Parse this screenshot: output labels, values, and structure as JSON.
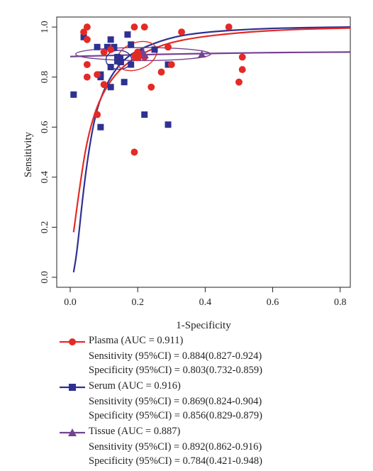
{
  "chart_data": {
    "type": "scatter",
    "title": "",
    "xlabel": "1-Specificity",
    "ylabel": "Sensitivity",
    "xlim": [
      -0.04,
      0.83
    ],
    "ylim": [
      -0.04,
      1.04
    ],
    "xticks": [
      "0.0",
      "0.2",
      "0.4",
      "0.6",
      "0.8"
    ],
    "yticks": [
      "0.0",
      "0.2",
      "0.4",
      "0.6",
      "0.8",
      "1.0"
    ],
    "grid": false,
    "legend_position": "below",
    "series": [
      {
        "name": "Plasma (AUC = 0.911)",
        "color": "#e42a26",
        "marker": "circle",
        "sensitivity_ci": "Sensitivity (95%CI) = 0.884(0.827-0.924)",
        "specificity_ci": "Specificity (95%CI) = 0.803(0.732-0.859)",
        "summary_point": [
          0.197,
          0.884
        ],
        "confidence_ellipse": {
          "rx": 0.062,
          "ry": 0.053,
          "angle": -22
        },
        "sroc_curve": [
          [
            0.01,
            0.18
          ],
          [
            0.03,
            0.38
          ],
          [
            0.05,
            0.55
          ],
          [
            0.08,
            0.69
          ],
          [
            0.12,
            0.79
          ],
          [
            0.17,
            0.86
          ],
          [
            0.25,
            0.92
          ],
          [
            0.35,
            0.955
          ],
          [
            0.5,
            0.978
          ],
          [
            0.65,
            0.99
          ],
          [
            0.83,
            0.996
          ]
        ],
        "points": [
          [
            0.04,
            0.98
          ],
          [
            0.05,
            1.0
          ],
          [
            0.05,
            0.95
          ],
          [
            0.05,
            0.85
          ],
          [
            0.05,
            0.8
          ],
          [
            0.08,
            0.65
          ],
          [
            0.08,
            0.81
          ],
          [
            0.1,
            0.77
          ],
          [
            0.1,
            0.9
          ],
          [
            0.12,
            0.91
          ],
          [
            0.19,
            1.0
          ],
          [
            0.22,
            1.0
          ],
          [
            0.19,
            0.5
          ],
          [
            0.2,
            0.9
          ],
          [
            0.24,
            0.76
          ],
          [
            0.27,
            0.82
          ],
          [
            0.29,
            0.92
          ],
          [
            0.3,
            0.85
          ],
          [
            0.33,
            0.98
          ],
          [
            0.47,
            1.0
          ],
          [
            0.5,
            0.78
          ],
          [
            0.51,
            0.83
          ],
          [
            0.51,
            0.88
          ],
          [
            0.22,
            0.88
          ]
        ]
      },
      {
        "name": "Serum (AUC = 0.916)",
        "color": "#2e3192",
        "marker": "square",
        "sensitivity_ci": "Sensitivity (95%CI) = 0.869(0.824-0.904)",
        "specificity_ci": "Specificity (95%CI) = 0.856(0.829-0.879)",
        "summary_point": [
          0.144,
          0.869
        ],
        "confidence_ellipse": {
          "rx": 0.038,
          "ry": 0.038,
          "angle": 0
        },
        "sroc_curve": [
          [
            0.01,
            0.02
          ],
          [
            0.02,
            0.1
          ],
          [
            0.04,
            0.36
          ],
          [
            0.06,
            0.55
          ],
          [
            0.08,
            0.68
          ],
          [
            0.11,
            0.78
          ],
          [
            0.15,
            0.86
          ],
          [
            0.2,
            0.91
          ],
          [
            0.3,
            0.96
          ],
          [
            0.4,
            0.98
          ],
          [
            0.55,
            0.993
          ],
          [
            0.7,
            0.998
          ],
          [
            0.83,
            1.0
          ]
        ],
        "points": [
          [
            0.01,
            0.73
          ],
          [
            0.04,
            0.96
          ],
          [
            0.08,
            0.92
          ],
          [
            0.09,
            0.6
          ],
          [
            0.09,
            0.8
          ],
          [
            0.11,
            0.92
          ],
          [
            0.12,
            0.76
          ],
          [
            0.12,
            0.84
          ],
          [
            0.12,
            0.95
          ],
          [
            0.13,
            0.92
          ],
          [
            0.14,
            0.87
          ],
          [
            0.15,
            0.86
          ],
          [
            0.16,
            0.78
          ],
          [
            0.17,
            0.97
          ],
          [
            0.18,
            0.93
          ],
          [
            0.18,
            0.85
          ],
          [
            0.2,
            0.88
          ],
          [
            0.21,
            0.9
          ],
          [
            0.22,
            0.65
          ],
          [
            0.25,
            0.91
          ],
          [
            0.29,
            0.85
          ],
          [
            0.29,
            0.61
          ],
          [
            0.14,
            0.88
          ],
          [
            0.09,
            0.81
          ]
        ]
      },
      {
        "name": "Tissue (AUC = 0.887)",
        "color": "#744291",
        "marker": "triangle",
        "sensitivity_ci": "Sensitivity (95%CI) = 0.892(0.862-0.916)",
        "specificity_ci": "Specificity (95%CI) = 0.784(0.421-0.948)",
        "summary_point": [
          0.216,
          0.892
        ],
        "confidence_ellipse": {
          "rx": 0.2,
          "ry": 0.026,
          "angle": 0
        },
        "sroc_curve": [
          [
            0.0,
            0.882
          ],
          [
            0.1,
            0.886
          ],
          [
            0.2,
            0.889
          ],
          [
            0.3,
            0.892
          ],
          [
            0.4,
            0.894
          ],
          [
            0.5,
            0.896
          ],
          [
            0.6,
            0.898
          ],
          [
            0.7,
            0.899
          ],
          [
            0.83,
            0.9
          ]
        ],
        "points": [
          [
            0.2,
            0.89
          ],
          [
            0.21,
            0.9
          ],
          [
            0.22,
            0.89
          ],
          [
            0.39,
            0.89
          ]
        ]
      }
    ]
  }
}
